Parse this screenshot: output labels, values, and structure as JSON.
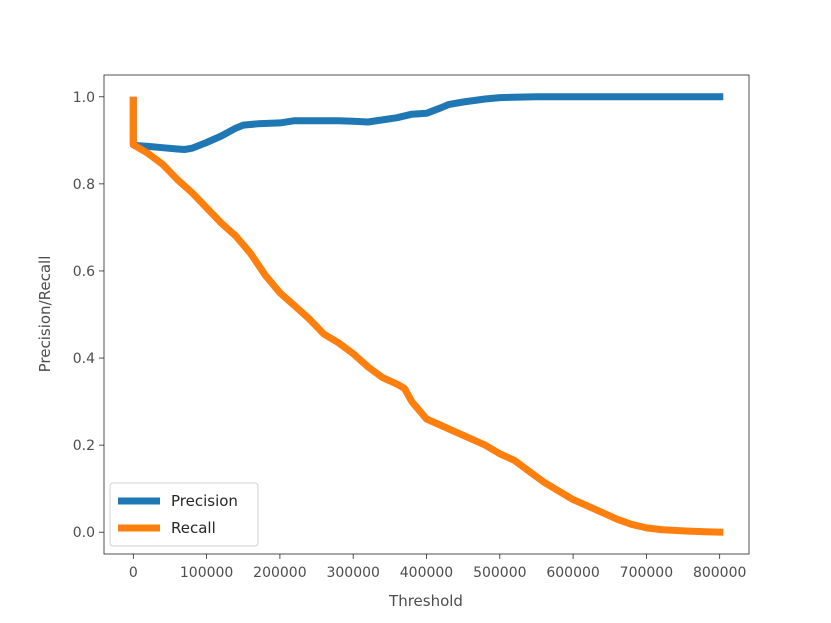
{
  "chart_data": {
    "type": "line",
    "xlabel": "Threshold",
    "ylabel": "Precision/Recall",
    "xlim": [
      -40000,
      840000
    ],
    "ylim": [
      -0.05,
      1.05
    ],
    "xticks": [
      0,
      100000,
      200000,
      300000,
      400000,
      500000,
      600000,
      700000,
      800000
    ],
    "xtick_labels": [
      "0",
      "100000",
      "200000",
      "300000",
      "400000",
      "500000",
      "600000",
      "700000",
      "800000"
    ],
    "yticks": [
      0.0,
      0.2,
      0.4,
      0.6,
      0.8,
      1.0
    ],
    "ytick_labels": [
      "0.0",
      "0.2",
      "0.4",
      "0.6",
      "0.8",
      "1.0"
    ],
    "grid": false,
    "legend_position": "lower-left",
    "series": [
      {
        "name": "Precision",
        "color": "#1f77b4",
        "x": [
          0,
          0,
          3000,
          20000,
          40000,
          60000,
          70000,
          80000,
          100000,
          120000,
          140000,
          150000,
          170000,
          200000,
          220000,
          250000,
          280000,
          300000,
          320000,
          340000,
          360000,
          380000,
          400000,
          420000,
          430000,
          450000,
          480000,
          500000,
          550000,
          600000,
          700000,
          805000
        ],
        "y": [
          1.0,
          0.89,
          0.888,
          0.886,
          0.883,
          0.88,
          0.879,
          0.882,
          0.895,
          0.91,
          0.928,
          0.935,
          0.938,
          0.94,
          0.945,
          0.945,
          0.945,
          0.944,
          0.942,
          0.947,
          0.952,
          0.96,
          0.962,
          0.975,
          0.982,
          0.988,
          0.995,
          0.998,
          1.0,
          1.0,
          1.0,
          1.0
        ]
      },
      {
        "name": "Recall",
        "color": "#ff7f0e",
        "x": [
          0,
          0,
          20000,
          40000,
          60000,
          80000,
          100000,
          120000,
          140000,
          160000,
          180000,
          200000,
          220000,
          240000,
          260000,
          280000,
          300000,
          320000,
          340000,
          360000,
          370000,
          380000,
          400000,
          420000,
          440000,
          460000,
          480000,
          500000,
          520000,
          540000,
          560000,
          580000,
          600000,
          620000,
          640000,
          660000,
          680000,
          700000,
          720000,
          750000,
          780000,
          805000
        ],
        "y": [
          1.0,
          0.89,
          0.87,
          0.845,
          0.81,
          0.78,
          0.745,
          0.71,
          0.68,
          0.64,
          0.59,
          0.55,
          0.52,
          0.49,
          0.455,
          0.435,
          0.41,
          0.38,
          0.355,
          0.34,
          0.33,
          0.3,
          0.26,
          0.245,
          0.23,
          0.215,
          0.2,
          0.18,
          0.165,
          0.14,
          0.115,
          0.095,
          0.075,
          0.06,
          0.045,
          0.03,
          0.018,
          0.01,
          0.006,
          0.003,
          0.001,
          0.0
        ]
      }
    ]
  }
}
